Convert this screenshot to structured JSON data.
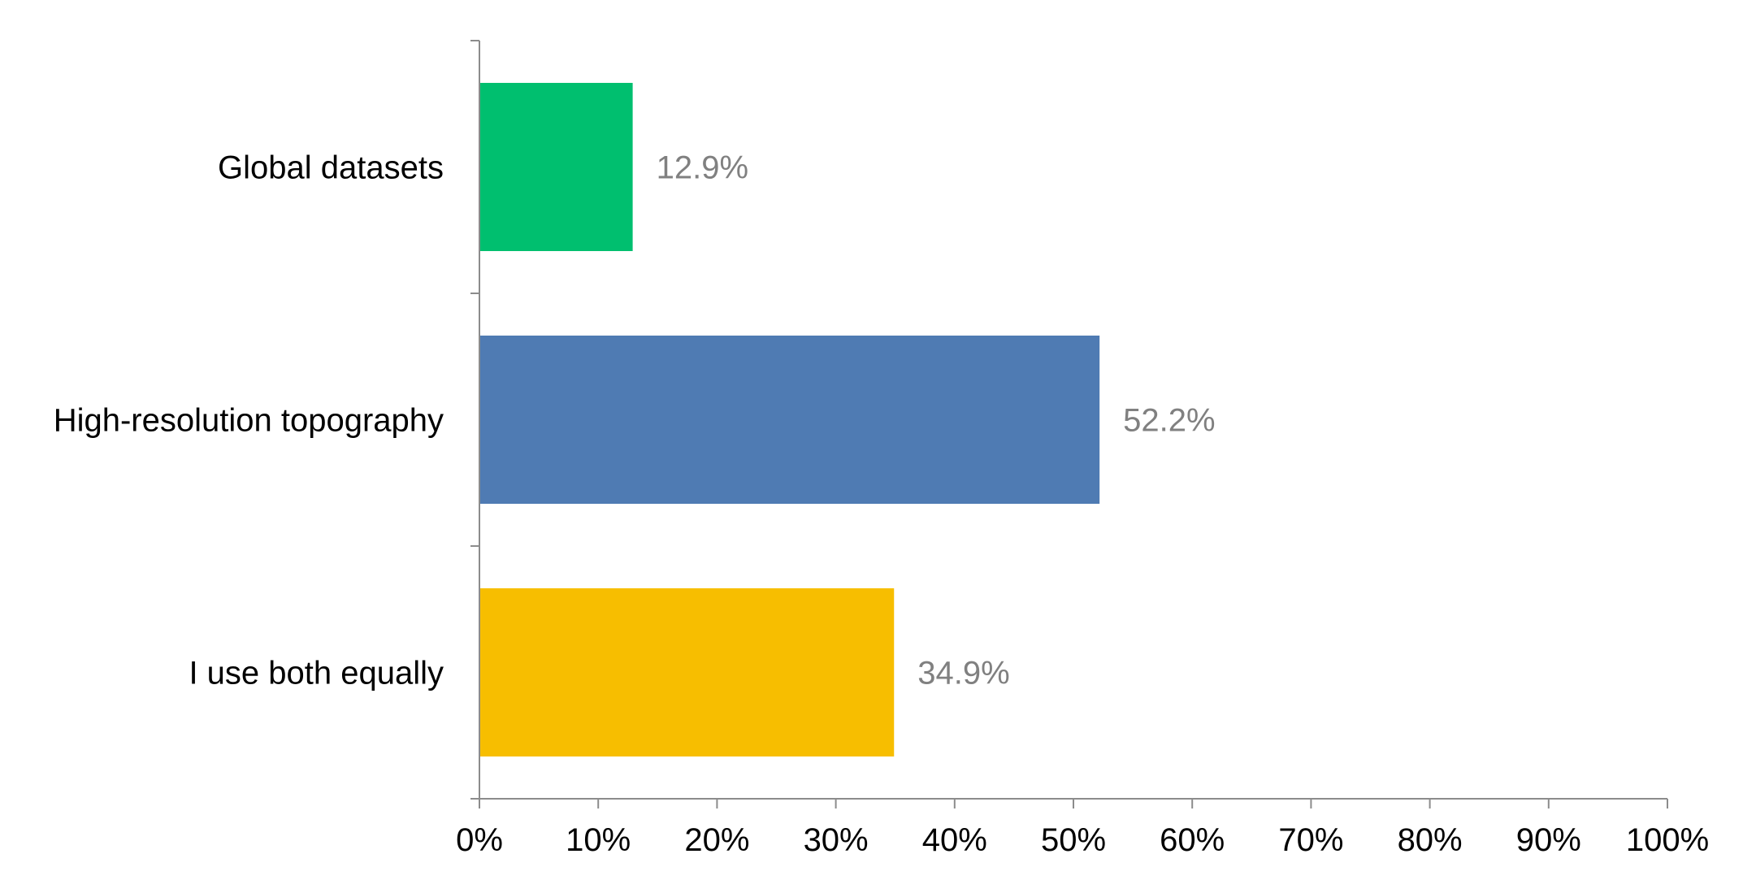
{
  "chart_data": {
    "type": "bar",
    "orientation": "horizontal",
    "categories": [
      "Global datasets",
      "High-resolution topography",
      "I use both equally"
    ],
    "values": [
      12.9,
      52.2,
      34.9
    ],
    "data_labels": [
      "12.9%",
      "52.2%",
      "34.9%"
    ],
    "colors": [
      "#00BF6F",
      "#4F7BB3",
      "#F7BE00"
    ],
    "xlim": [
      0,
      100
    ],
    "x_ticks": [
      0,
      10,
      20,
      30,
      40,
      50,
      60,
      70,
      80,
      90,
      100
    ],
    "x_tick_labels": [
      "0%",
      "10%",
      "20%",
      "30%",
      "40%",
      "50%",
      "60%",
      "70%",
      "80%",
      "90%",
      "100%"
    ],
    "title": "",
    "xlabel": "",
    "ylabel": "",
    "grid": false,
    "legend": "none"
  }
}
